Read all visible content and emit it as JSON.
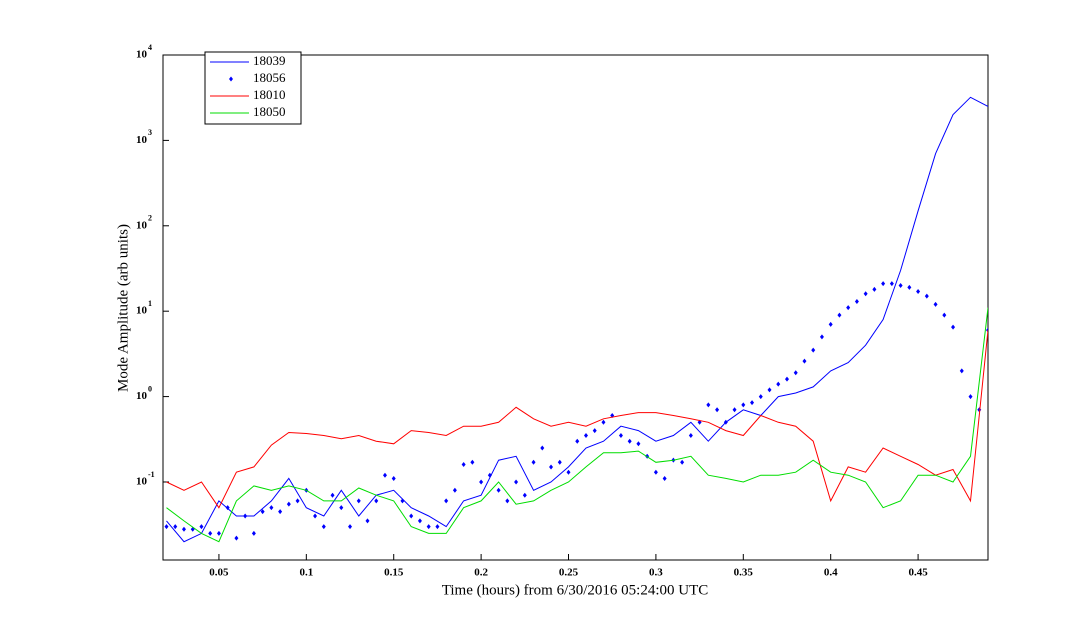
{
  "chart_data": {
    "type": "line",
    "xlabel": "Time (hours) from 6/30/2016 05:24:00 UTC",
    "ylabel": "Mode Amplitude (arb units)",
    "log_y": true,
    "grid": false,
    "legend": "upper left",
    "xlim": [
      0.018,
      0.49
    ],
    "ylim": [
      0.0122,
      10000
    ],
    "xticks": [
      0.05,
      0.1,
      0.15,
      0.2,
      0.25,
      0.3,
      0.35,
      0.4,
      0.45
    ],
    "yticks": [
      {
        "value": 0.1,
        "label": "10",
        "sup": "-1"
      },
      {
        "value": 1,
        "label": "10",
        "sup": "0"
      },
      {
        "value": 10,
        "label": "10",
        "sup": "1"
      },
      {
        "value": 100,
        "label": "10",
        "sup": "2"
      },
      {
        "value": 1000,
        "label": "10",
        "sup": "3"
      },
      {
        "value": 10000,
        "label": "10",
        "sup": "4"
      }
    ],
    "series": [
      {
        "name": "18039",
        "color": "#0000ff",
        "style": "line",
        "x": [
          0.02,
          0.03,
          0.04,
          0.05,
          0.06,
          0.07,
          0.08,
          0.09,
          0.1,
          0.11,
          0.12,
          0.13,
          0.14,
          0.15,
          0.16,
          0.17,
          0.18,
          0.19,
          0.2,
          0.21,
          0.22,
          0.23,
          0.24,
          0.25,
          0.26,
          0.27,
          0.28,
          0.29,
          0.3,
          0.31,
          0.32,
          0.33,
          0.34,
          0.35,
          0.36,
          0.37,
          0.38,
          0.39,
          0.4,
          0.41,
          0.42,
          0.43,
          0.44,
          0.45,
          0.46,
          0.47,
          0.48,
          0.49
        ],
        "values": [
          0.035,
          0.02,
          0.025,
          0.06,
          0.04,
          0.04,
          0.06,
          0.11,
          0.05,
          0.04,
          0.08,
          0.04,
          0.07,
          0.08,
          0.05,
          0.04,
          0.03,
          0.06,
          0.07,
          0.18,
          0.2,
          0.08,
          0.1,
          0.15,
          0.25,
          0.3,
          0.45,
          0.4,
          0.3,
          0.35,
          0.5,
          0.3,
          0.5,
          0.7,
          0.6,
          1.0,
          1.1,
          1.3,
          2.0,
          2.5,
          4,
          8,
          30,
          150,
          700,
          2000,
          3200,
          2500
        ]
      },
      {
        "name": "18056",
        "color": "#0000ff",
        "style": "dots",
        "x": [
          0.02,
          0.025,
          0.03,
          0.035,
          0.04,
          0.045,
          0.05,
          0.055,
          0.06,
          0.065,
          0.07,
          0.075,
          0.08,
          0.085,
          0.09,
          0.095,
          0.1,
          0.105,
          0.11,
          0.115,
          0.12,
          0.125,
          0.13,
          0.135,
          0.14,
          0.145,
          0.15,
          0.155,
          0.16,
          0.165,
          0.17,
          0.175,
          0.18,
          0.185,
          0.19,
          0.195,
          0.2,
          0.205,
          0.21,
          0.215,
          0.22,
          0.225,
          0.23,
          0.235,
          0.24,
          0.245,
          0.25,
          0.255,
          0.26,
          0.265,
          0.27,
          0.275,
          0.28,
          0.285,
          0.29,
          0.295,
          0.3,
          0.305,
          0.31,
          0.315,
          0.32,
          0.325,
          0.33,
          0.335,
          0.34,
          0.345,
          0.35,
          0.355,
          0.36,
          0.365,
          0.37,
          0.375,
          0.38,
          0.385,
          0.39,
          0.395,
          0.4,
          0.405,
          0.41,
          0.415,
          0.42,
          0.425,
          0.43,
          0.435,
          0.44,
          0.445,
          0.45,
          0.455,
          0.46,
          0.465,
          0.47,
          0.475,
          0.48,
          0.485,
          0.49
        ],
        "values": [
          0.03,
          0.03,
          0.028,
          0.028,
          0.03,
          0.025,
          0.025,
          0.05,
          0.022,
          0.04,
          0.025,
          0.045,
          0.05,
          0.045,
          0.055,
          0.06,
          0.08,
          0.04,
          0.03,
          0.07,
          0.05,
          0.03,
          0.06,
          0.035,
          0.06,
          0.12,
          0.11,
          0.06,
          0.04,
          0.035,
          0.03,
          0.03,
          0.06,
          0.08,
          0.16,
          0.17,
          0.1,
          0.12,
          0.08,
          0.06,
          0.1,
          0.07,
          0.17,
          0.25,
          0.15,
          0.17,
          0.13,
          0.3,
          0.35,
          0.4,
          0.5,
          0.6,
          0.35,
          0.3,
          0.28,
          0.2,
          0.13,
          0.11,
          0.18,
          0.17,
          0.35,
          0.5,
          0.8,
          0.7,
          0.5,
          0.7,
          0.8,
          0.85,
          1.0,
          1.2,
          1.4,
          1.6,
          1.9,
          2.6,
          3.5,
          5,
          7,
          9,
          11,
          13,
          16,
          18,
          21,
          21,
          20,
          19,
          17,
          15,
          12,
          9,
          6.5,
          2,
          1,
          0.7,
          6
        ]
      },
      {
        "name": "18010",
        "color": "#ff0000",
        "style": "line",
        "x": [
          0.02,
          0.03,
          0.04,
          0.05,
          0.06,
          0.07,
          0.08,
          0.09,
          0.1,
          0.11,
          0.12,
          0.13,
          0.14,
          0.15,
          0.16,
          0.17,
          0.18,
          0.19,
          0.2,
          0.21,
          0.22,
          0.23,
          0.24,
          0.25,
          0.26,
          0.27,
          0.28,
          0.29,
          0.3,
          0.31,
          0.32,
          0.33,
          0.34,
          0.35,
          0.36,
          0.37,
          0.38,
          0.39,
          0.4,
          0.41,
          0.42,
          0.43,
          0.44,
          0.45,
          0.46,
          0.47,
          0.48,
          0.49
        ],
        "values": [
          0.1,
          0.08,
          0.1,
          0.05,
          0.13,
          0.15,
          0.27,
          0.38,
          0.37,
          0.35,
          0.32,
          0.35,
          0.3,
          0.28,
          0.4,
          0.38,
          0.35,
          0.45,
          0.45,
          0.5,
          0.75,
          0.55,
          0.45,
          0.5,
          0.45,
          0.55,
          0.6,
          0.65,
          0.65,
          0.6,
          0.55,
          0.5,
          0.4,
          0.35,
          0.6,
          0.5,
          0.45,
          0.3,
          0.06,
          0.15,
          0.13,
          0.25,
          0.2,
          0.16,
          0.12,
          0.14,
          0.06,
          6
        ]
      },
      {
        "name": "18050",
        "color": "#00dd00",
        "style": "line",
        "x": [
          0.02,
          0.03,
          0.04,
          0.05,
          0.06,
          0.07,
          0.08,
          0.09,
          0.1,
          0.11,
          0.12,
          0.13,
          0.14,
          0.15,
          0.16,
          0.17,
          0.18,
          0.19,
          0.2,
          0.21,
          0.22,
          0.23,
          0.24,
          0.25,
          0.26,
          0.27,
          0.28,
          0.29,
          0.3,
          0.31,
          0.32,
          0.33,
          0.34,
          0.35,
          0.36,
          0.37,
          0.38,
          0.39,
          0.4,
          0.41,
          0.42,
          0.43,
          0.44,
          0.45,
          0.46,
          0.47,
          0.48,
          0.49
        ],
        "values": [
          0.05,
          0.035,
          0.025,
          0.02,
          0.06,
          0.09,
          0.08,
          0.09,
          0.08,
          0.06,
          0.06,
          0.085,
          0.07,
          0.06,
          0.03,
          0.025,
          0.025,
          0.05,
          0.06,
          0.1,
          0.055,
          0.06,
          0.08,
          0.1,
          0.15,
          0.22,
          0.22,
          0.23,
          0.17,
          0.18,
          0.2,
          0.12,
          0.11,
          0.1,
          0.12,
          0.12,
          0.13,
          0.18,
          0.13,
          0.12,
          0.1,
          0.05,
          0.06,
          0.12,
          0.12,
          0.1,
          0.2,
          11
        ]
      }
    ]
  }
}
